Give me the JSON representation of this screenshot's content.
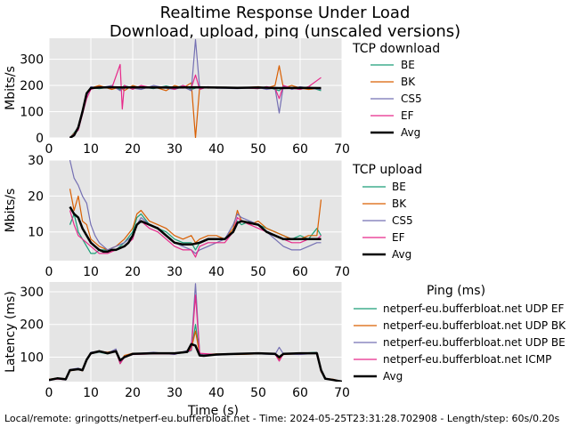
{
  "title": "Realtime Response Under Load",
  "subtitle": "Download, upload, ping (unscaled versions)",
  "footer": "Local/remote: gringotts/netperf-eu.bufferbloat.net - Time: 2024-05-25T23:31:28.702908 - Length/step: 60s/0.20s",
  "colors": {
    "BE": "#1b9e77",
    "BK": "#d95f02",
    "CS5": "#7570b3",
    "EF": "#e7298a",
    "Avg": "#000000",
    "plot_bg": "#e5e5e5",
    "grid": "#ffffff"
  },
  "chart_data": [
    {
      "type": "line",
      "legend_title": "TCP download",
      "xlabel": "",
      "ylabel": "Mbits/s",
      "xlim": [
        0,
        70
      ],
      "ylim": [
        0,
        380
      ],
      "xticks": [
        0,
        10,
        20,
        30,
        40,
        50,
        60,
        70
      ],
      "yticks": [
        0,
        100,
        200,
        300
      ],
      "grid": true,
      "legend_placement": "right",
      "series": [
        {
          "name": "BE",
          "color": "#1b9e77",
          "x": [
            5,
            7,
            9,
            10,
            12,
            15,
            17,
            18,
            20,
            22,
            25,
            28,
            30,
            32,
            34,
            35,
            36,
            38,
            40,
            45,
            50,
            52,
            54,
            55,
            56,
            58,
            60,
            62,
            65
          ],
          "y": [
            0,
            40,
            170,
            192,
            188,
            195,
            185,
            200,
            190,
            195,
            188,
            198,
            190,
            200,
            185,
            190,
            195,
            192,
            190,
            192,
            188,
            195,
            185,
            180,
            195,
            190,
            185,
            195,
            180
          ]
        },
        {
          "name": "BK",
          "color": "#d95f02",
          "x": [
            5,
            7,
            9,
            10,
            12,
            15,
            17,
            18,
            20,
            22,
            25,
            28,
            30,
            32,
            34,
            35,
            36,
            38,
            40,
            45,
            50,
            52,
            54,
            55,
            56,
            58,
            60,
            62,
            65
          ],
          "y": [
            0,
            35,
            165,
            190,
            200,
            185,
            195,
            180,
            200,
            190,
            195,
            180,
            200,
            190,
            210,
            0,
            195,
            190,
            192,
            190,
            195,
            190,
            200,
            275,
            190,
            200,
            190,
            185,
            190
          ]
        },
        {
          "name": "CS5",
          "color": "#7570b3",
          "x": [
            5,
            7,
            9,
            10,
            12,
            15,
            17,
            18,
            20,
            22,
            25,
            28,
            30,
            32,
            34,
            35,
            36,
            38,
            40,
            45,
            50,
            52,
            54,
            55,
            56,
            58,
            60,
            62,
            65
          ],
          "y": [
            0,
            30,
            160,
            195,
            190,
            200,
            180,
            195,
            190,
            185,
            200,
            190,
            185,
            195,
            180,
            375,
            190,
            195,
            190,
            188,
            192,
            185,
            190,
            95,
            200,
            185,
            195,
            190,
            185
          ]
        },
        {
          "name": "EF",
          "color": "#e7298a",
          "x": [
            5,
            7,
            9,
            10,
            12,
            15,
            17,
            17.5,
            18,
            20,
            22,
            25,
            28,
            30,
            32,
            34,
            35,
            36,
            38,
            40,
            45,
            50,
            52,
            54,
            55,
            56,
            58,
            60,
            62,
            65
          ],
          "y": [
            0,
            30,
            150,
            185,
            195,
            190,
            280,
            110,
            200,
            185,
            200,
            190,
            195,
            185,
            200,
            190,
            240,
            185,
            195,
            190,
            192,
            188,
            195,
            190,
            150,
            200,
            190,
            185,
            195,
            230
          ]
        },
        {
          "name": "Avg",
          "color": "#000000",
          "x": [
            5,
            6,
            7,
            8,
            9,
            10,
            12,
            15,
            18,
            20,
            25,
            30,
            35,
            40,
            45,
            50,
            55,
            60,
            65
          ],
          "y": [
            0,
            10,
            40,
            100,
            170,
            190,
            192,
            193,
            192,
            193,
            192,
            192,
            193,
            192,
            191,
            192,
            190,
            191,
            190
          ]
        }
      ]
    },
    {
      "type": "line",
      "legend_title": "TCP upload",
      "xlabel": "",
      "ylabel": "Mbits/s",
      "xlim": [
        0,
        70
      ],
      "ylim": [
        2,
        30
      ],
      "xticks": [
        0,
        10,
        20,
        30,
        40,
        50,
        60,
        70
      ],
      "yticks": [
        10,
        20,
        30
      ],
      "grid": true,
      "legend_placement": "right",
      "series": [
        {
          "name": "BE",
          "color": "#1b9e77",
          "x": [
            5,
            6,
            7,
            8,
            9,
            10,
            11,
            12,
            14,
            16,
            18,
            20,
            21,
            22,
            24,
            26,
            28,
            30,
            32,
            34,
            35,
            36,
            38,
            40,
            42,
            44,
            45,
            46,
            48,
            50,
            52,
            54,
            56,
            58,
            60,
            62,
            64,
            65
          ],
          "y": [
            12,
            15,
            10,
            8,
            6,
            4,
            4,
            5,
            5,
            5,
            7,
            10,
            14,
            15,
            12,
            11,
            10,
            8,
            7,
            7,
            5,
            7,
            8,
            8,
            8,
            10,
            13,
            12,
            13,
            12,
            11,
            10,
            9,
            8,
            9,
            8,
            11,
            9
          ]
        },
        {
          "name": "BK",
          "color": "#d95f02",
          "x": [
            5,
            6,
            7,
            8,
            9,
            10,
            11,
            12,
            14,
            16,
            18,
            20,
            21,
            22,
            24,
            26,
            28,
            30,
            32,
            34,
            35,
            36,
            38,
            40,
            42,
            44,
            45,
            46,
            48,
            50,
            52,
            54,
            56,
            58,
            60,
            62,
            64,
            65
          ],
          "y": [
            22,
            16,
            20,
            13,
            12,
            8,
            7,
            6,
            5,
            6,
            8,
            11,
            15,
            16,
            13,
            12,
            11,
            9,
            8,
            9,
            7,
            8,
            9,
            9,
            8,
            11,
            16,
            13,
            12,
            13,
            11,
            10,
            9,
            8,
            8,
            9,
            9,
            19
          ]
        },
        {
          "name": "CS5",
          "color": "#7570b3",
          "x": [
            5,
            6,
            7,
            8,
            9,
            10,
            11,
            12,
            14,
            16,
            18,
            20,
            21,
            22,
            24,
            26,
            28,
            30,
            32,
            34,
            35,
            36,
            38,
            40,
            42,
            44,
            45,
            46,
            48,
            50,
            52,
            54,
            56,
            58,
            60,
            62,
            64,
            65
          ],
          "y": [
            30,
            25,
            23,
            20,
            18,
            12,
            9,
            7,
            5,
            6,
            7,
            9,
            12,
            14,
            12,
            11,
            9,
            7,
            6,
            5,
            4,
            5,
            6,
            7,
            8,
            12,
            15,
            14,
            13,
            12,
            10,
            8,
            6,
            5,
            5,
            6,
            7,
            7
          ]
        },
        {
          "name": "EF",
          "color": "#e7298a",
          "x": [
            5,
            6,
            7,
            8,
            9,
            10,
            11,
            12,
            14,
            16,
            18,
            20,
            21,
            22,
            24,
            26,
            28,
            30,
            32,
            34,
            35,
            36,
            38,
            40,
            42,
            44,
            45,
            46,
            48,
            50,
            52,
            54,
            56,
            58,
            60,
            62,
            64,
            65
          ],
          "y": [
            16,
            12,
            9,
            8,
            7,
            6,
            5,
            4,
            4,
            5,
            6,
            8,
            12,
            13,
            11,
            10,
            8,
            6,
            5,
            5,
            3,
            6,
            7,
            7,
            7,
            10,
            14,
            13,
            12,
            11,
            10,
            9,
            8,
            7,
            7,
            8,
            8,
            9
          ]
        },
        {
          "name": "Avg",
          "color": "#000000",
          "x": [
            5,
            6,
            7,
            8,
            9,
            10,
            11,
            12,
            13,
            14,
            15,
            16,
            18,
            19,
            20,
            21,
            22,
            24,
            26,
            28,
            30,
            32,
            34,
            36,
            38,
            40,
            42,
            44,
            45,
            46,
            48,
            50,
            52,
            54,
            56,
            58,
            60,
            62,
            64,
            65
          ],
          "y": [
            17,
            15,
            14,
            11,
            9,
            7,
            6,
            5,
            4.5,
            4.5,
            5,
            5,
            6,
            7,
            9,
            12,
            13,
            12,
            11,
            9,
            7,
            6.5,
            6.5,
            7,
            8,
            8,
            8,
            10,
            12.5,
            13,
            12.5,
            12,
            10,
            9,
            8,
            8,
            8,
            8,
            8,
            8
          ]
        }
      ]
    },
    {
      "type": "line",
      "legend_title": "Ping (ms)",
      "xlabel": "Time (s)",
      "ylabel": "Latency (ms)",
      "xlim": [
        0,
        70
      ],
      "ylim": [
        25,
        330
      ],
      "xticks": [
        0,
        10,
        20,
        30,
        40,
        50,
        60,
        70
      ],
      "yticks": [
        100,
        200,
        300
      ],
      "grid": true,
      "legend_placement": "right",
      "series": [
        {
          "name": "netperf-eu.bufferbloat.net UDP EF",
          "color": "#1b9e77",
          "x": [
            0,
            2,
            4,
            5,
            7,
            8,
            9,
            10,
            12,
            14,
            16,
            17,
            18,
            20,
            25,
            30,
            33,
            34,
            35,
            36,
            40,
            45,
            50,
            54,
            55,
            56,
            60,
            64,
            65,
            66,
            68,
            70
          ],
          "y": [
            30,
            35,
            32,
            60,
            65,
            60,
            95,
            110,
            115,
            110,
            120,
            80,
            100,
            110,
            112,
            110,
            115,
            120,
            200,
            110,
            108,
            110,
            112,
            110,
            90,
            110,
            112,
            115,
            60,
            35,
            30,
            25
          ]
        },
        {
          "name": "netperf-eu.bufferbloat.net UDP BK",
          "color": "#d95f02",
          "x": [
            0,
            2,
            4,
            5,
            7,
            8,
            9,
            10,
            12,
            14,
            16,
            17,
            18,
            20,
            25,
            30,
            33,
            34,
            35,
            36,
            40,
            45,
            50,
            54,
            55,
            56,
            60,
            64,
            65,
            66,
            68,
            70
          ],
          "y": [
            32,
            36,
            34,
            58,
            62,
            58,
            90,
            112,
            118,
            115,
            120,
            82,
            105,
            112,
            110,
            112,
            118,
            125,
            180,
            108,
            110,
            108,
            110,
            112,
            95,
            108,
            110,
            112,
            55,
            35,
            32,
            25
          ]
        },
        {
          "name": "netperf-eu.bufferbloat.net UDP BE",
          "color": "#7570b3",
          "x": [
            0,
            2,
            4,
            5,
            7,
            8,
            9,
            10,
            12,
            14,
            16,
            17,
            18,
            20,
            25,
            30,
            33,
            34,
            35,
            36,
            40,
            45,
            50,
            54,
            55,
            56,
            60,
            64,
            65,
            66,
            68,
            70
          ],
          "y": [
            28,
            34,
            30,
            62,
            66,
            62,
            92,
            115,
            118,
            112,
            125,
            85,
            102,
            110,
            115,
            108,
            120,
            130,
            325,
            110,
            106,
            110,
            110,
            108,
            130,
            110,
            108,
            112,
            58,
            34,
            30,
            25
          ]
        },
        {
          "name": "netperf-eu.bufferbloat.net ICMP",
          "color": "#e7298a",
          "x": [
            0,
            2,
            4,
            5,
            7,
            8,
            9,
            10,
            12,
            14,
            16,
            17,
            18,
            20,
            25,
            30,
            33,
            34,
            35,
            36,
            40,
            45,
            50,
            54,
            55,
            56,
            60,
            64,
            65,
            66,
            68,
            70
          ],
          "y": [
            30,
            33,
            31,
            60,
            64,
            60,
            94,
            110,
            116,
            113,
            118,
            80,
            100,
            108,
            110,
            110,
            116,
            122,
            290,
            112,
            108,
            110,
            111,
            110,
            88,
            110,
            110,
            114,
            56,
            35,
            31,
            25
          ]
        },
        {
          "name": "Avg",
          "color": "#000000",
          "x": [
            0,
            2,
            4,
            5,
            7,
            8,
            9,
            10,
            12,
            14,
            16,
            17,
            18,
            20,
            25,
            30,
            33,
            34,
            35,
            36,
            37,
            40,
            45,
            50,
            54,
            55,
            56,
            60,
            64,
            65,
            66,
            68,
            70
          ],
          "y": [
            30,
            35,
            32,
            60,
            63,
            60,
            92,
            112,
            118,
            112,
            118,
            90,
            100,
            110,
            112,
            112,
            116,
            140,
            135,
            105,
            104,
            108,
            110,
            112,
            110,
            100,
            110,
            112,
            112,
            60,
            34,
            30,
            25
          ]
        }
      ]
    }
  ]
}
